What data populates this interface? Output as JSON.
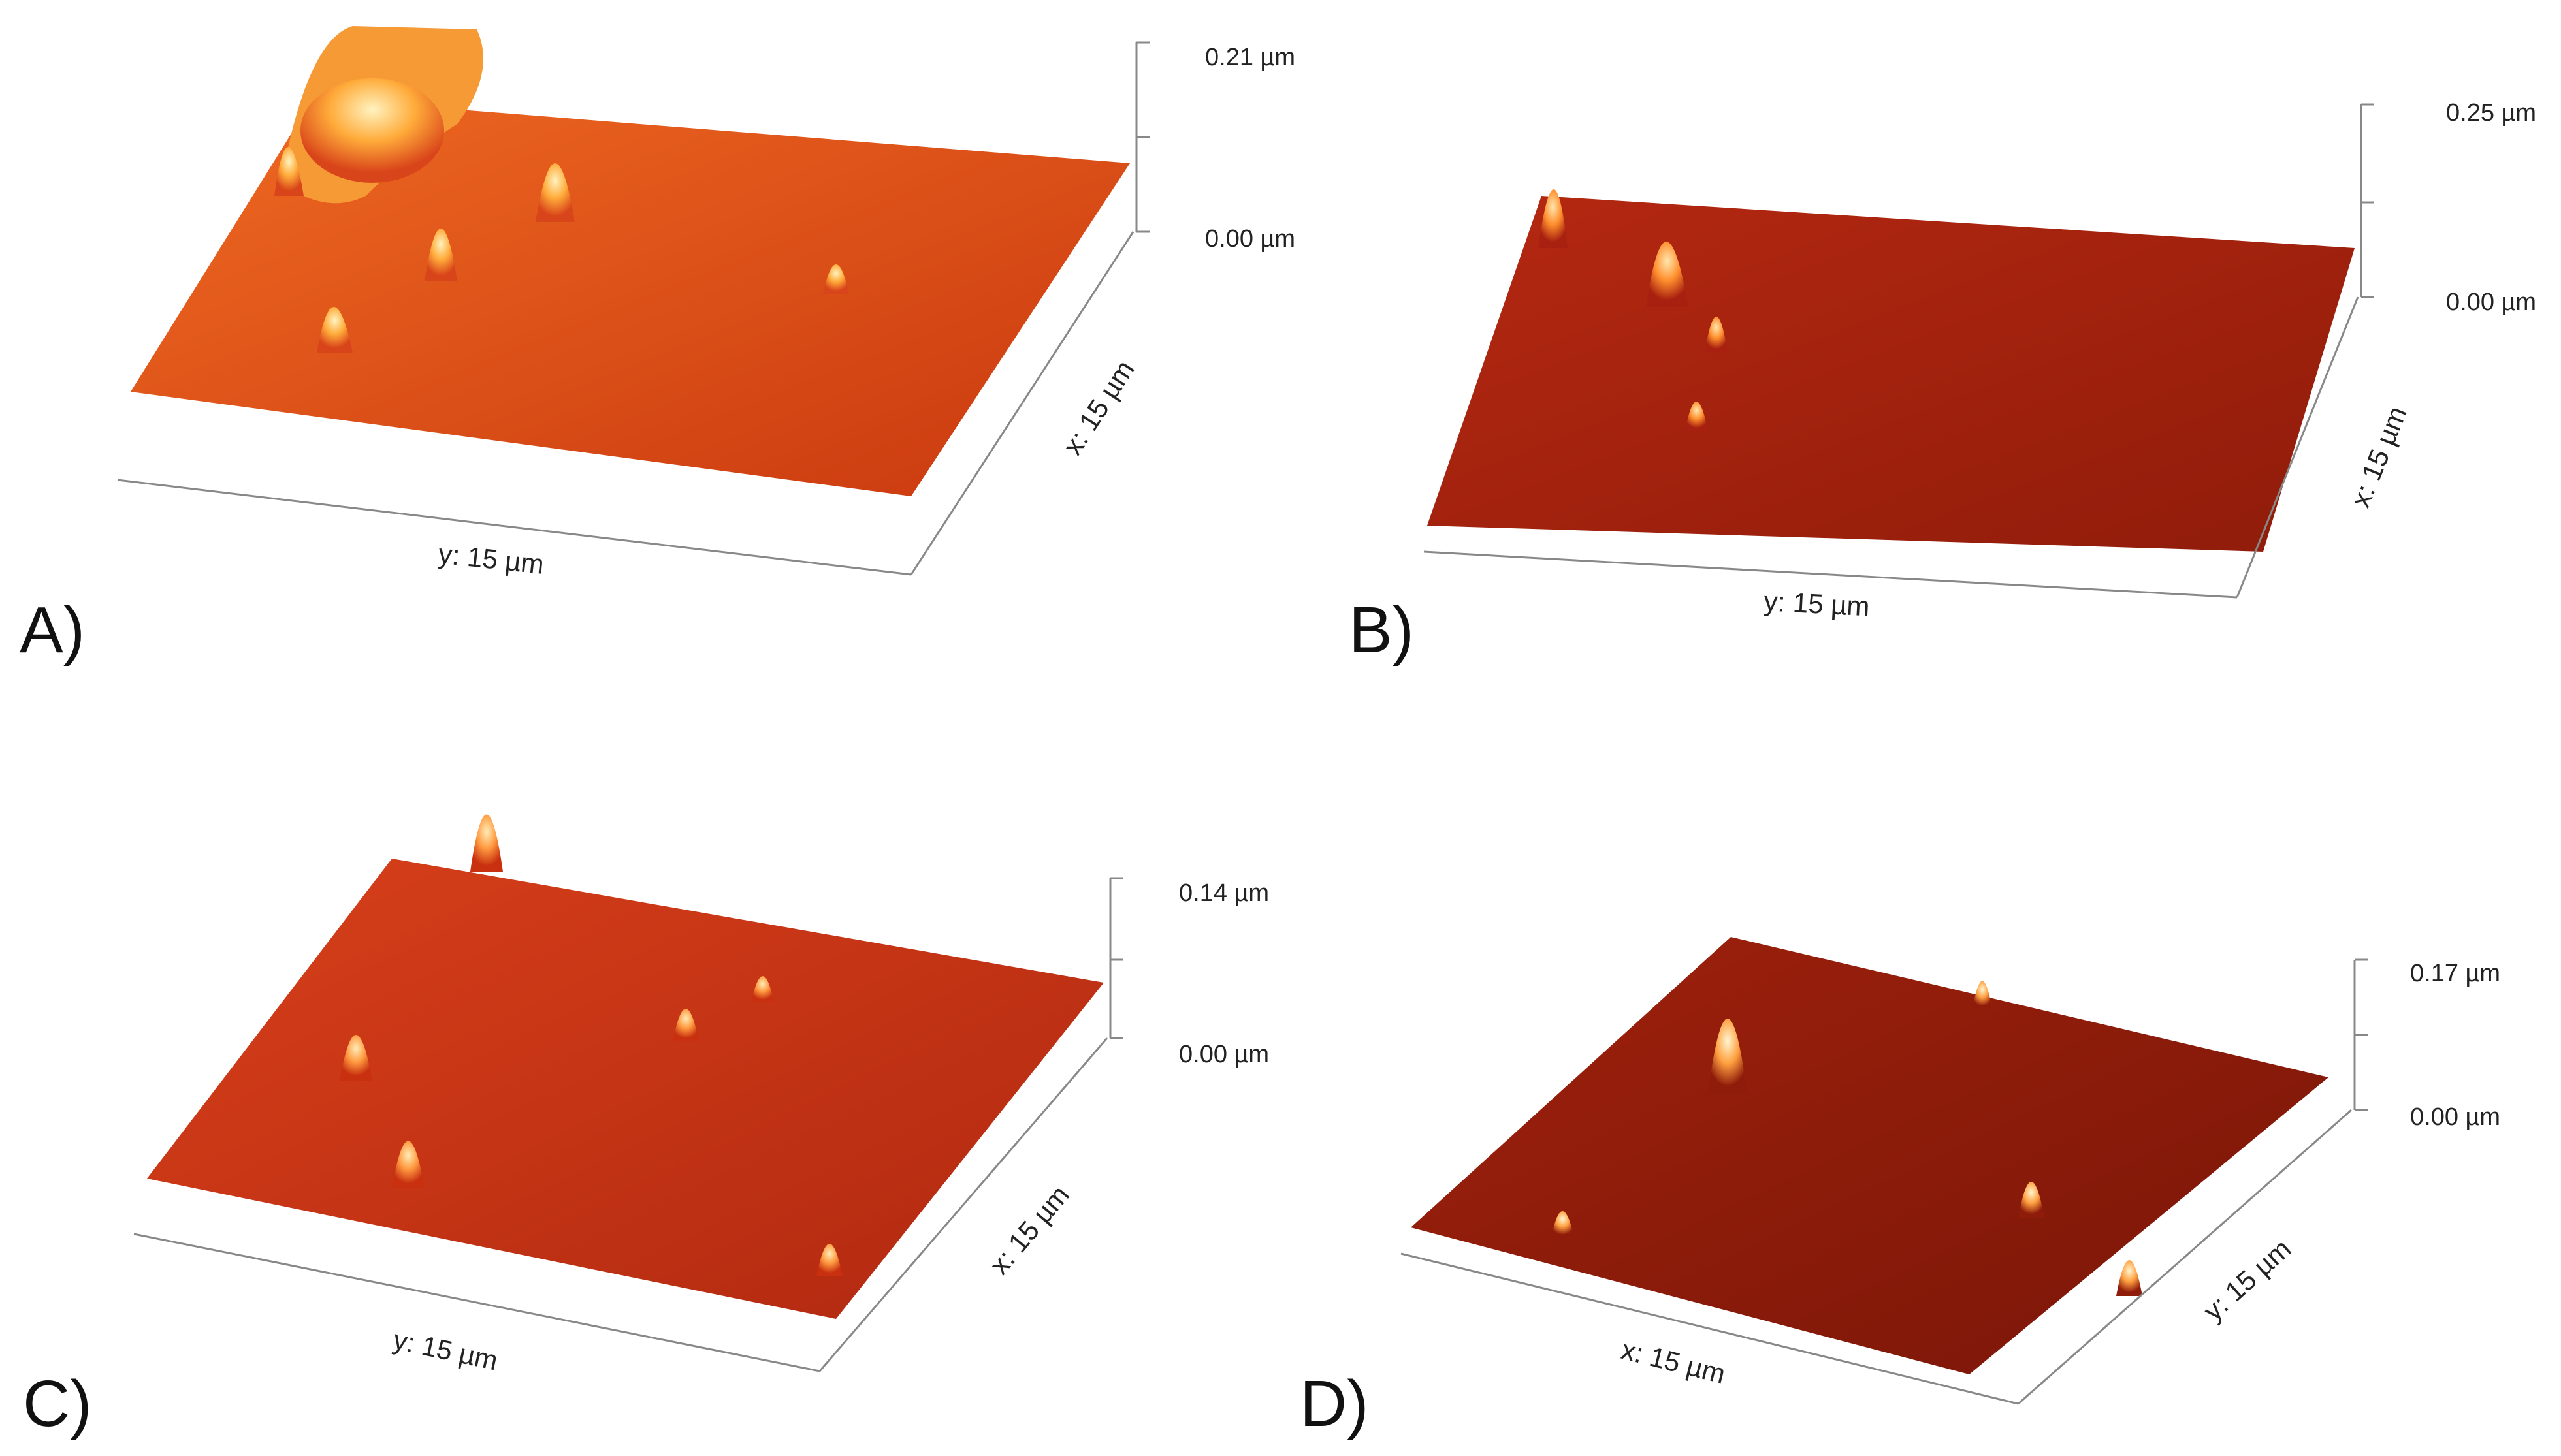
{
  "figure": {
    "panels": [
      {
        "id": "A",
        "label": "A)",
        "z_max": "0.21 µm",
        "z_min": "0.00 µm",
        "x_axis": "x: 15 µm",
        "y_axis": "y: 15 µm",
        "surface_color": "#d9451a",
        "peak_color": "#ffb347"
      },
      {
        "id": "B",
        "label": "B)",
        "z_max": "0.25 µm",
        "z_min": "0.00 µm",
        "x_axis": "x: 15 µm",
        "y_axis": "y: 15 µm",
        "surface_color": "#a8200f",
        "peak_color": "#ff9a3c"
      },
      {
        "id": "C",
        "label": "C)",
        "z_max": "0.14 µm",
        "z_min": "0.00 µm",
        "x_axis": "x: 15 µm",
        "y_axis": "y: 15 µm",
        "surface_color": "#c8300f",
        "peak_color": "#ffa64d"
      },
      {
        "id": "D",
        "label": "D)",
        "z_max": "0.17 µm",
        "z_min": "0.00 µm",
        "x_axis": "x: 15 µm",
        "y_axis": "y: 15 µm",
        "surface_color": "#8f1c0a",
        "peak_color": "#ffb060"
      }
    ]
  }
}
